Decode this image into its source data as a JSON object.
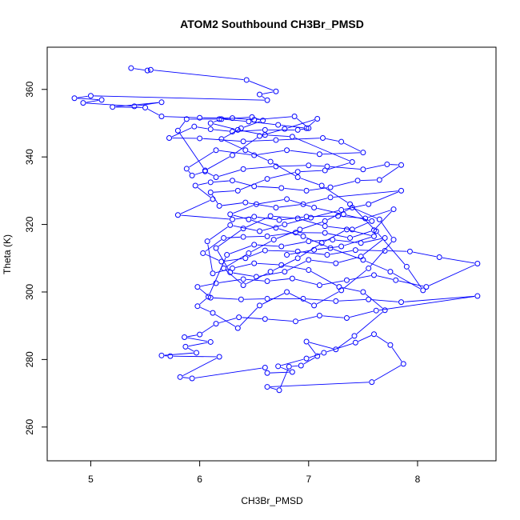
{
  "chart_data": {
    "type": "scatter",
    "title": "ATOM2 Southbound CH3Br_PMSD",
    "xlabel": "CH3Br_PMSD",
    "ylabel": "Theta (K)",
    "xlim": [
      4.6,
      8.72
    ],
    "ylim": [
      250,
      372.5
    ],
    "xticks": [
      "5",
      "6",
      "7",
      "8"
    ],
    "yticks": [
      "260",
      "280",
      "300",
      "320",
      "340",
      "360"
    ],
    "grid": false,
    "legend": "none",
    "colors": {
      "series": "#0000ff",
      "axis": "#000000",
      "background": "#ffffff"
    },
    "series": [
      {
        "mode": "lines+markers",
        "points": [
          [
            5.37,
            366.3
          ],
          [
            5.52,
            365.6
          ],
          [
            5.55,
            365.8
          ],
          [
            6.43,
            362.8
          ],
          [
            6.7,
            359.4
          ],
          [
            6.55,
            358.5
          ],
          [
            6.62,
            356.8
          ],
          [
            5.0,
            358.1
          ],
          [
            4.85,
            357.4
          ],
          [
            5.1,
            356.9
          ],
          [
            4.93,
            356.0
          ],
          [
            5.4,
            355.0
          ],
          [
            5.65,
            356.2
          ],
          [
            5.2,
            354.8
          ],
          [
            5.5,
            354.6
          ],
          [
            5.65,
            352.0
          ],
          [
            6.0,
            351.6
          ],
          [
            6.3,
            351.5
          ],
          [
            6.5,
            351.0
          ],
          [
            6.87,
            352.0
          ],
          [
            7.0,
            348.5
          ],
          [
            6.9,
            348.0
          ],
          [
            6.6,
            348.0
          ],
          [
            6.3,
            347.5
          ],
          [
            6.1,
            348.2
          ],
          [
            5.95,
            349.0
          ],
          [
            5.72,
            345.6
          ],
          [
            6.0,
            345.5
          ],
          [
            6.4,
            344.6
          ],
          [
            6.7,
            345.0
          ],
          [
            7.13,
            345.6
          ],
          [
            7.3,
            344.5
          ],
          [
            7.5,
            341.3
          ],
          [
            7.1,
            340.8
          ],
          [
            6.8,
            342.0
          ],
          [
            6.5,
            340.5
          ],
          [
            6.15,
            342.0
          ],
          [
            5.88,
            336.5
          ],
          [
            5.93,
            334.5
          ],
          [
            6.05,
            335.7
          ],
          [
            6.15,
            334.0
          ],
          [
            6.4,
            336.4
          ],
          [
            6.7,
            337.2
          ],
          [
            7.0,
            337.5
          ],
          [
            7.17,
            337.2
          ],
          [
            7.5,
            336.3
          ],
          [
            7.72,
            337.8
          ],
          [
            7.85,
            337.6
          ],
          [
            7.65,
            333.2
          ],
          [
            7.45,
            333.0
          ],
          [
            7.2,
            331.0
          ],
          [
            6.98,
            330.0
          ],
          [
            6.75,
            330.8
          ],
          [
            6.5,
            331.3
          ],
          [
            6.3,
            333.0
          ],
          [
            6.1,
            332.5
          ],
          [
            5.96,
            331.5
          ],
          [
            6.12,
            327.5
          ],
          [
            5.8,
            322.8
          ],
          [
            6.3,
            321.5
          ],
          [
            6.5,
            322.3
          ],
          [
            6.73,
            321.3
          ],
          [
            6.98,
            322.3
          ],
          [
            7.27,
            322.5
          ],
          [
            7.52,
            321.8
          ],
          [
            7.78,
            324.5
          ],
          [
            7.6,
            318.3
          ],
          [
            7.38,
            316.0
          ],
          [
            7.15,
            317.5
          ],
          [
            6.88,
            317.6
          ],
          [
            6.62,
            316.5
          ],
          [
            6.4,
            316.3
          ],
          [
            6.22,
            316.0
          ],
          [
            6.03,
            311.5
          ],
          [
            6.2,
            309.0
          ],
          [
            6.42,
            310.0
          ],
          [
            6.6,
            312.3
          ],
          [
            6.9,
            312.0
          ],
          [
            7.17,
            311.0
          ],
          [
            7.43,
            312.4
          ],
          [
            7.7,
            312.2
          ],
          [
            7.93,
            312.0
          ],
          [
            8.2,
            310.3
          ],
          [
            8.55,
            308.4
          ],
          [
            8.08,
            301.5
          ],
          [
            7.8,
            303.5
          ],
          [
            7.6,
            305.0
          ],
          [
            7.35,
            303.5
          ],
          [
            7.1,
            302.0
          ],
          [
            6.85,
            304.0
          ],
          [
            6.62,
            303.2
          ],
          [
            6.4,
            303.8
          ],
          [
            6.15,
            302.6
          ],
          [
            5.98,
            301.5
          ],
          [
            6.1,
            298.3
          ],
          [
            6.38,
            297.8
          ],
          [
            6.62,
            298.0
          ],
          [
            6.95,
            298.0
          ],
          [
            7.25,
            297.3
          ],
          [
            7.55,
            297.8
          ],
          [
            7.85,
            297.0
          ],
          [
            8.55,
            298.8
          ],
          [
            7.62,
            294.5
          ],
          [
            7.35,
            292.3
          ],
          [
            7.1,
            293.0
          ],
          [
            6.88,
            291.3
          ],
          [
            6.6,
            292.0
          ],
          [
            6.36,
            292.5
          ],
          [
            6.15,
            290.6
          ],
          [
            6.0,
            287.4
          ],
          [
            5.86,
            286.6
          ],
          [
            6.1,
            285.2
          ],
          [
            5.87,
            283.8
          ],
          [
            5.97,
            282.0
          ],
          [
            5.65,
            281.2
          ],
          [
            5.73,
            281.0
          ],
          [
            6.18,
            280.8
          ],
          [
            5.82,
            274.8
          ],
          [
            5.93,
            274.4
          ],
          [
            6.6,
            277.6
          ],
          [
            6.62,
            276.0
          ],
          [
            6.85,
            276.3
          ],
          [
            6.72,
            278.0
          ],
          [
            6.98,
            280.3
          ],
          [
            7.14,
            282.0
          ],
          [
            7.43,
            285.0
          ],
          [
            7.6,
            287.5
          ],
          [
            7.75,
            284.3
          ],
          [
            7.87,
            278.7
          ],
          [
            7.58,
            273.3
          ],
          [
            6.62,
            271.9
          ],
          [
            6.73,
            270.9
          ],
          [
            6.82,
            277.9
          ],
          [
            6.93,
            278.2
          ],
          [
            7.08,
            281.0
          ],
          [
            6.98,
            285.3
          ],
          [
            7.25,
            283.0
          ],
          [
            7.42,
            287.0
          ],
          [
            7.7,
            294.6
          ],
          [
            7.5,
            300.0
          ],
          [
            7.28,
            301.5
          ],
          [
            7.0,
            306.5
          ],
          [
            6.75,
            308.0
          ],
          [
            6.5,
            308.5
          ],
          [
            6.3,
            307.0
          ],
          [
            6.12,
            305.5
          ],
          [
            6.07,
            315.0
          ],
          [
            6.28,
            319.8
          ],
          [
            6.55,
            318.0
          ],
          [
            6.78,
            320.0
          ],
          [
            7.02,
            322.0
          ],
          [
            7.3,
            324.3
          ],
          [
            7.55,
            326.0
          ],
          [
            7.85,
            330.0
          ],
          [
            7.2,
            328.0
          ],
          [
            6.95,
            326.0
          ],
          [
            6.7,
            325.0
          ],
          [
            6.42,
            326.5
          ],
          [
            6.18,
            325.5
          ],
          [
            6.1,
            329.5
          ],
          [
            6.35,
            330.0
          ],
          [
            6.62,
            333.5
          ],
          [
            6.9,
            335.6
          ],
          [
            7.15,
            336.0
          ],
          [
            7.4,
            338.5
          ],
          [
            6.85,
            346.0
          ],
          [
            6.6,
            346.5
          ],
          [
            6.35,
            348.0
          ],
          [
            6.1,
            350.0
          ],
          [
            6.2,
            351.2
          ],
          [
            6.45,
            350.5
          ],
          [
            6.72,
            349.5
          ],
          [
            6.98,
            348.5
          ],
          [
            7.08,
            351.3
          ],
          [
            6.78,
            348.3
          ],
          [
            6.55,
            346.2
          ],
          [
            6.3,
            340.5
          ],
          [
            6.05,
            336.0
          ],
          [
            5.8,
            347.8
          ],
          [
            5.88,
            351.2
          ],
          [
            6.18,
            351.2
          ],
          [
            6.48,
            351.8
          ],
          [
            6.58,
            350.8
          ],
          [
            6.38,
            348.5
          ],
          [
            6.2,
            345.3
          ],
          [
            6.42,
            342.0
          ],
          [
            6.65,
            338.6
          ],
          [
            6.9,
            334.0
          ],
          [
            7.12,
            331.5
          ],
          [
            7.38,
            326.0
          ],
          [
            7.62,
            318.0
          ],
          [
            7.9,
            307.5
          ],
          [
            8.05,
            300.5
          ],
          [
            7.75,
            306.0
          ],
          [
            7.5,
            309.5
          ],
          [
            7.2,
            313.0
          ],
          [
            6.95,
            316.5
          ],
          [
            6.7,
            319.0
          ],
          [
            6.45,
            321.5
          ],
          [
            6.28,
            323.0
          ],
          [
            6.52,
            326.0
          ],
          [
            6.8,
            327.5
          ],
          [
            7.05,
            325.0
          ],
          [
            7.32,
            323.0
          ],
          [
            7.58,
            321.0
          ],
          [
            7.4,
            318.5
          ],
          [
            7.15,
            319.5
          ],
          [
            6.9,
            321.8
          ],
          [
            6.65,
            322.5
          ],
          [
            6.4,
            318.8
          ],
          [
            6.15,
            313.0
          ],
          [
            6.28,
            305.8
          ],
          [
            6.52,
            304.5
          ],
          [
            6.78,
            306.0
          ],
          [
            7.0,
            309.5
          ],
          [
            7.25,
            308.5
          ],
          [
            7.48,
            310.5
          ],
          [
            7.7,
            316.0
          ],
          [
            7.48,
            314.5
          ],
          [
            7.22,
            315.5
          ],
          [
            7.0,
            315.0
          ],
          [
            6.75,
            313.5
          ],
          [
            6.5,
            314.0
          ],
          [
            6.25,
            311.0
          ],
          [
            6.08,
            298.6
          ],
          [
            5.98,
            295.8
          ],
          [
            6.12,
            293.8
          ],
          [
            6.35,
            289.3
          ],
          [
            6.55,
            296.0
          ],
          [
            6.8,
            300.0
          ],
          [
            7.05,
            296.0
          ],
          [
            7.3,
            300.5
          ],
          [
            7.55,
            307.0
          ],
          [
            7.78,
            315.5
          ],
          [
            7.65,
            321.5
          ],
          [
            7.4,
            325.0
          ],
          [
            7.15,
            321.0
          ],
          [
            6.92,
            318.5
          ],
          [
            6.68,
            315.5
          ],
          [
            6.45,
            311.5
          ],
          [
            6.22,
            307.0
          ],
          [
            6.4,
            302.0
          ],
          [
            6.65,
            306.0
          ],
          [
            6.9,
            310.0
          ],
          [
            7.12,
            314.5
          ],
          [
            7.35,
            318.5
          ],
          [
            7.6,
            316.5
          ],
          [
            7.3,
            313.5
          ],
          [
            7.05,
            312.5
          ],
          [
            6.8,
            311.0
          ]
        ]
      }
    ]
  }
}
